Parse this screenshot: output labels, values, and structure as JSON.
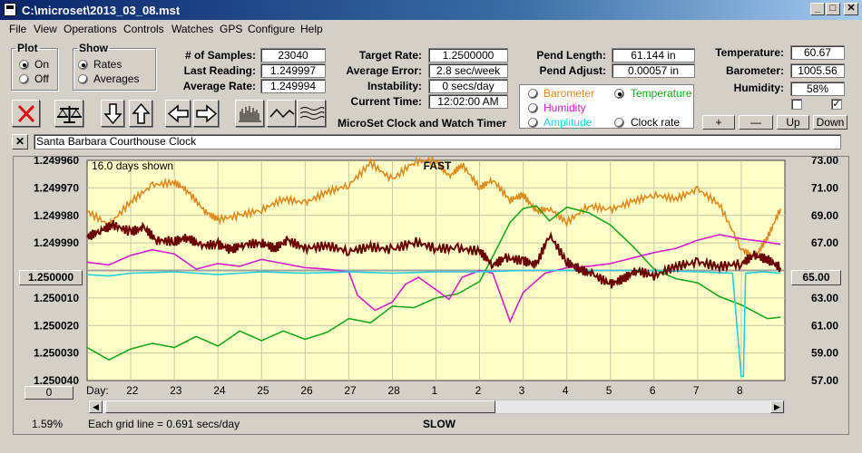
{
  "window": {
    "title": "C:\\microset\\2013_03_08.mst"
  },
  "menu": [
    "File",
    "View",
    "Operations",
    "Controls",
    "Watches",
    "GPS",
    "Configure",
    "Help"
  ],
  "plot_group": {
    "title": "Plot",
    "options": [
      "On",
      "Off"
    ],
    "selected": "On"
  },
  "show_group": {
    "title": "Show",
    "options": [
      "Rates",
      "Averages"
    ],
    "selected": "Rates"
  },
  "stats": {
    "samples_label": "# of Samples:",
    "samples": "23040",
    "last_reading_label": "Last Reading:",
    "last_reading": "1.249997",
    "average_rate_label": "Average Rate:",
    "average_rate": "1.249994"
  },
  "rates": {
    "target_rate_label": "Target Rate:",
    "target_rate": "1.2500000",
    "average_error_label": "Average Error:",
    "average_error": "2.8 sec/week",
    "instability_label": "Instability:",
    "instability": "0 secs/day",
    "current_time_label": "Current Time:",
    "current_time": "12:02:00 AM",
    "caption": "MicroSet Clock and Watch Timer"
  },
  "pendulum": {
    "length_label": "Pend Length:",
    "length": "61.144 in",
    "adjust_label": "Pend Adjust:",
    "adjust": "0.00057 in"
  },
  "environment": {
    "temperature_label": "Temperature:",
    "temperature": "60.67",
    "barometer_label": "Barometer:",
    "barometer": "1005.56",
    "humidity_label": "Humidity:",
    "humidity": "58%",
    "checkbox_1_checked": false,
    "checkbox_2_checked": true,
    "buttons": [
      "+",
      "—",
      "Up",
      "Down"
    ]
  },
  "trace_selector": {
    "options": [
      {
        "label": "Barometer",
        "color": "#e08a1e",
        "checked": false
      },
      {
        "label": "Temperature",
        "color": "#1aa81a",
        "checked": true
      },
      {
        "label": "Humidity",
        "color": "#d020d0",
        "checked": false
      },
      {
        "label": "Clock rate",
        "color": "#000000",
        "checked": false
      },
      {
        "label": "Amplitude",
        "color": "#20d0e0",
        "checked": false
      }
    ]
  },
  "toolbar_icons": [
    "close-x-icon",
    "balance-scale-icon",
    "arrow-down-icon",
    "arrow-up-icon",
    "arrow-left-icon",
    "arrow-right-icon",
    "histogram-icon",
    "wave-icon",
    "multi-wave-icon"
  ],
  "clock_name": "Santa Barbara Courthouse Clock",
  "chart_data": {
    "type": "line",
    "top_label": "FAST",
    "bottom_label": "SLOW",
    "days_shown": "16.0 days shown",
    "grid_note": "Each grid line = 0.691 secs/day",
    "percent": "1.59%",
    "left_axis": {
      "ticks": [
        "1.249960",
        "1.249970",
        "1.249980",
        "1.249990",
        "1.250000",
        "1.250010",
        "1.250020",
        "1.250030",
        "1.250040"
      ],
      "highlighted": "1.250000",
      "range": [
        1.24996,
        1.25004
      ]
    },
    "right_axis": {
      "ticks": [
        "73.00",
        "71.00",
        "69.00",
        "67.00",
        "65.00",
        "63.00",
        "61.00",
        "59.00",
        "57.00"
      ],
      "highlighted": "65.00",
      "range": [
        57,
        73
      ]
    },
    "x_prefix": "Day:",
    "x_ticks": [
      "22",
      "23",
      "24",
      "25",
      "26",
      "27",
      "28",
      "1",
      "2",
      "3",
      "4",
      "5",
      "6",
      "7",
      "8"
    ],
    "x_range": [
      0,
      16
    ],
    "offset_button": "0",
    "series": [
      {
        "key": "barometer",
        "color": "#e08a1e",
        "x": [
          0,
          0.5,
          1,
          1.5,
          2,
          2.3,
          2.7,
          3,
          3.5,
          4,
          4.5,
          5,
          5.5,
          6,
          6.5,
          7,
          7.5,
          8,
          8.3,
          8.6,
          9,
          9.3,
          9.7,
          10,
          10.3,
          10.6,
          11,
          11.5,
          12,
          12.5,
          13,
          13.5,
          14,
          14.5,
          15,
          15.3,
          15.6,
          15.9
        ],
        "y": [
          69.3,
          68.3,
          70,
          71.2,
          71.4,
          70.8,
          69.3,
          68.7,
          69,
          69.4,
          70.2,
          69.9,
          70.7,
          71.2,
          72.8,
          71.6,
          72.9,
          73,
          71.8,
          72.7,
          71,
          71.6,
          70.1,
          70.5,
          69.3,
          69.5,
          68.5,
          69.7,
          69.4,
          70,
          70.5,
          70.2,
          70.9,
          69.8,
          66.6,
          65.9,
          67.4,
          69.5
        ]
      },
      {
        "key": "temperature",
        "color": "#1aa81a",
        "x": [
          0,
          0.5,
          1,
          1.5,
          2,
          2.5,
          3,
          3.5,
          4,
          4.5,
          5,
          5.5,
          6,
          6.5,
          7,
          7.5,
          8,
          8.5,
          9,
          9.3,
          9.7,
          10,
          10.3,
          10.6,
          11,
          11.5,
          12,
          12.5,
          13,
          13.5,
          14,
          14.5,
          15,
          15.3,
          15.6,
          15.9
        ],
        "y": [
          59.4,
          58.5,
          59.3,
          59.7,
          59.4,
          60.2,
          59.5,
          60.6,
          59.9,
          60.6,
          60,
          60.5,
          61.5,
          61.2,
          62.4,
          62.3,
          63,
          63.3,
          64.2,
          66,
          68.5,
          69.5,
          69.7,
          68.6,
          69.6,
          69.2,
          68.3,
          66.8,
          65.1,
          64.4,
          64.1,
          63.1,
          62.5,
          62,
          61.5,
          61.6
        ]
      },
      {
        "key": "humidity",
        "color": "#d020d0",
        "x": [
          0,
          0.5,
          1,
          1.5,
          2,
          2.5,
          3,
          3.5,
          4,
          4.5,
          5,
          5.5,
          6,
          6.2,
          6.6,
          7,
          7.3,
          7.6,
          8,
          8.3,
          8.6,
          9,
          9.3,
          9.7,
          10,
          10.5,
          11,
          11.5,
          12,
          12.5,
          13,
          13.5,
          14,
          14.5,
          15,
          15.5,
          15.9
        ],
        "y": [
          65.6,
          65.4,
          66.1,
          66.5,
          66.2,
          65.1,
          65.5,
          65.3,
          65.8,
          65.5,
          65.2,
          65.1,
          64.9,
          63.2,
          62.1,
          62.7,
          64,
          64.5,
          63.6,
          62.9,
          64.5,
          65,
          64.8,
          61.3,
          63.4,
          64.8,
          65.2,
          65.3,
          65.5,
          65.9,
          66.3,
          66.6,
          67.2,
          67.6,
          67.3,
          67.1,
          66.9
        ]
      },
      {
        "key": "amplitude",
        "color": "#20d0e0",
        "x": [
          0,
          0.5,
          1,
          2,
          3,
          4,
          5,
          6,
          7,
          8,
          9,
          10,
          11,
          12,
          13,
          14,
          14.8,
          15,
          15.05,
          15.1,
          15.5,
          15.9
        ],
        "y": [
          64.7,
          64.6,
          64.8,
          64.9,
          64.7,
          64.9,
          64.8,
          64.9,
          64.8,
          64.9,
          64.9,
          65,
          65,
          65,
          65,
          64.9,
          64.8,
          57.3,
          57.3,
          64.8,
          64.9,
          64.8
        ]
      },
      {
        "key": "clock_rate",
        "color": "#6b0000",
        "x": [
          0,
          0.3,
          0.6,
          1,
          1.3,
          1.6,
          2,
          2.3,
          2.6,
          3,
          3.3,
          3.6,
          4,
          4.3,
          4.6,
          5,
          5.5,
          6,
          6.5,
          7,
          7.5,
          8,
          8.5,
          9,
          9.3,
          9.6,
          10,
          10.3,
          10.6,
          11,
          11.3,
          11.6,
          12,
          12.3,
          12.6,
          13,
          13.5,
          14,
          14.5,
          15,
          15.3,
          15.6,
          15.9
        ],
        "y": [
          67.4,
          67.9,
          68.3,
          67.8,
          68.1,
          67.2,
          67.1,
          67.4,
          66.8,
          66.9,
          66.5,
          66.9,
          67,
          66.6,
          67.2,
          66.6,
          66.8,
          66.4,
          66.7,
          66.5,
          67.1,
          66.6,
          66.6,
          66.4,
          65.4,
          65.9,
          65.7,
          65.4,
          67.6,
          65.6,
          65.1,
          64.7,
          64,
          64.4,
          65,
          64.6,
          65.3,
          65.6,
          65.3,
          65.5,
          66.1,
          65.8,
          65.2
        ]
      }
    ]
  }
}
